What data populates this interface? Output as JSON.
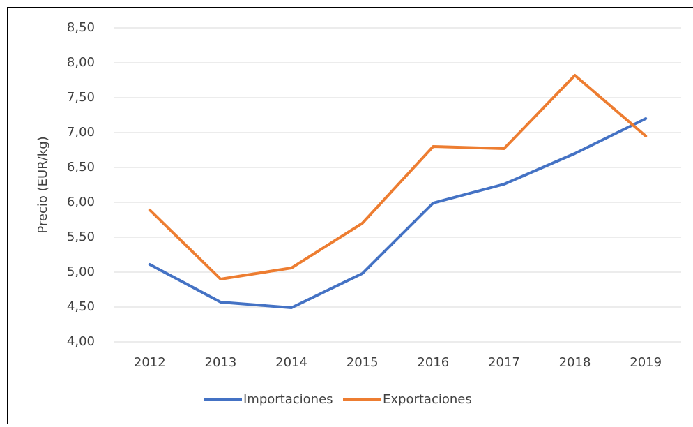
{
  "chart_data": {
    "type": "line",
    "y_label": "Precio (EUR/kg)",
    "categories": [
      "2012",
      "2013",
      "2014",
      "2015",
      "2016",
      "2017",
      "2018",
      "2019"
    ],
    "series": [
      {
        "name": "Importaciones",
        "color": "#4472c4",
        "values": [
          5.11,
          4.57,
          4.49,
          4.98,
          5.99,
          6.26,
          6.7,
          7.2
        ]
      },
      {
        "name": "Exportaciones",
        "color": "#ed7d31",
        "values": [
          5.89,
          4.9,
          5.06,
          5.7,
          6.8,
          6.77,
          7.82,
          6.95
        ]
      }
    ],
    "ylim": [
      4,
      8.5
    ],
    "yticks": [
      {
        "value": 4,
        "label": "4,00"
      },
      {
        "value": 4.5,
        "label": "4,50"
      },
      {
        "value": 5,
        "label": "5,00"
      },
      {
        "value": 5.5,
        "label": "5,50"
      },
      {
        "value": 6,
        "label": "6,00"
      },
      {
        "value": 6.5,
        "label": "6,50"
      },
      {
        "value": 7,
        "label": "7,00"
      },
      {
        "value": 7.5,
        "label": "7,50"
      },
      {
        "value": 8,
        "label": "8,00"
      },
      {
        "value": 8.5,
        "label": "8,50"
      }
    ],
    "grid": true,
    "legend": "bottom"
  }
}
